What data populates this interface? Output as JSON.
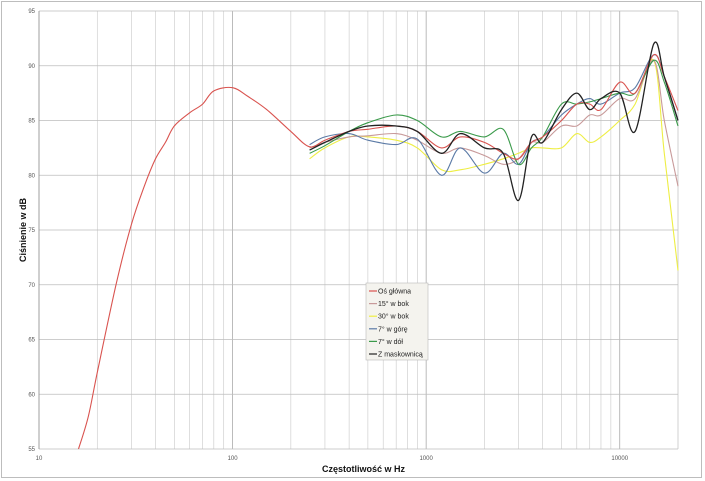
{
  "chart_data": {
    "type": "line",
    "title": "",
    "xlabel": "Częstotliwość w Hz",
    "ylabel": "Ciśnienie w dB",
    "xscale": "log",
    "xlim": [
      10,
      20000
    ],
    "ylim": [
      55,
      95
    ],
    "x_ticks": [
      "10",
      "100",
      "1000",
      "10000"
    ],
    "y_ticks": [
      "55",
      "60",
      "65",
      "70",
      "75",
      "80",
      "85",
      "90",
      "95"
    ],
    "grid": true,
    "legend_position": "center",
    "series": [
      {
        "name": "Oś główna",
        "color": "#d9534f",
        "x": [
          16,
          18,
          20,
          25,
          30,
          35,
          40,
          45,
          50,
          60,
          70,
          80,
          100,
          120,
          150,
          200,
          250,
          300,
          400,
          500,
          700,
          900,
          1200,
          1500,
          2000,
          2500,
          3000,
          3500,
          4000,
          5000,
          6000,
          7000,
          8000,
          10000,
          12000,
          15000,
          17000,
          20000
        ],
        "y": [
          55,
          58,
          62,
          70,
          75.5,
          79,
          81.5,
          83,
          84.5,
          85.7,
          86.5,
          87.7,
          88,
          87.2,
          86,
          84,
          82.6,
          83.2,
          84,
          84.2,
          84.5,
          84,
          82.5,
          83.5,
          83,
          82,
          81.5,
          83,
          83.5,
          85,
          86.5,
          86.5,
          86,
          88.5,
          87.5,
          91,
          89,
          85.9
        ]
      },
      {
        "name": "15° w bok",
        "color": "#c89a9a",
        "x": [
          250,
          300,
          400,
          500,
          700,
          900,
          1200,
          1500,
          2000,
          2500,
          3000,
          3500,
          4000,
          5000,
          6000,
          7000,
          8000,
          10000,
          12000,
          15000,
          17000,
          20000
        ],
        "y": [
          82.5,
          83,
          83.5,
          83.6,
          83.8,
          83.2,
          82,
          82.5,
          81.8,
          81,
          81.5,
          83,
          83,
          84.5,
          84.5,
          85.5,
          85.5,
          87,
          87,
          90.5,
          85,
          79
        ]
      },
      {
        "name": "30° w bok",
        "color": "#eeee44",
        "x": [
          250,
          300,
          400,
          500,
          700,
          900,
          1200,
          1500,
          2000,
          2500,
          3000,
          3500,
          4000,
          5000,
          6000,
          7000,
          8000,
          10000,
          12000,
          15000,
          17000,
          20000
        ],
        "y": [
          81.5,
          82.5,
          83.5,
          83.5,
          83.2,
          82.5,
          80.5,
          80.5,
          81,
          81.5,
          82,
          82.5,
          82.5,
          82.5,
          83.8,
          83,
          83.5,
          85,
          86.5,
          90.5,
          82,
          71.3
        ]
      },
      {
        "name": "7° w górę",
        "color": "#5b7aa6",
        "x": [
          250,
          300,
          400,
          500,
          700,
          900,
          1200,
          1500,
          2000,
          2500,
          3000,
          3500,
          4000,
          5000,
          6000,
          7000,
          8000,
          10000,
          12000,
          15000,
          17000,
          20000
        ],
        "y": [
          82.8,
          83.5,
          83.8,
          83.2,
          82.8,
          83.3,
          80,
          82.5,
          80.2,
          82,
          81,
          83,
          83.5,
          85.5,
          86.5,
          87,
          86.5,
          87.5,
          88,
          91,
          89,
          85
        ]
      },
      {
        "name": "7° w dół",
        "color": "#3a9a4a",
        "x": [
          250,
          300,
          400,
          500,
          700,
          900,
          1200,
          1500,
          2000,
          2500,
          3000,
          3500,
          4000,
          5000,
          6000,
          7000,
          8000,
          10000,
          12000,
          15000,
          17000,
          20000
        ],
        "y": [
          82,
          82.7,
          84,
          84.8,
          85.5,
          85,
          83.5,
          84,
          83.5,
          84.2,
          81,
          82.5,
          83.5,
          86.5,
          86.5,
          86.7,
          87,
          87.5,
          87.5,
          90.5,
          88.5,
          84.5
        ]
      },
      {
        "name": "Z maskownicą",
        "color": "#222222",
        "x": [
          250,
          300,
          400,
          500,
          700,
          900,
          1200,
          1500,
          2000,
          2500,
          3000,
          3500,
          4000,
          5000,
          6000,
          7000,
          8000,
          10000,
          12000,
          15000,
          17000,
          20000
        ],
        "y": [
          82.3,
          83,
          84,
          84.5,
          84.5,
          84,
          82,
          83.8,
          82.5,
          82,
          77.7,
          83.5,
          83,
          86,
          87.5,
          86,
          87,
          87.5,
          84,
          92,
          89,
          85
        ]
      }
    ]
  }
}
